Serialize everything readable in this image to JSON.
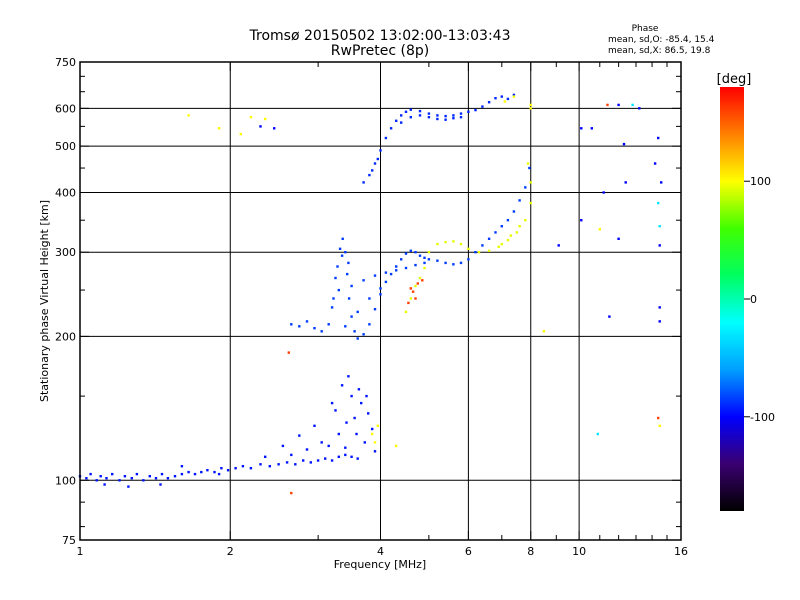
{
  "chart_data": {
    "type": "scatter",
    "title": "Tromsø 20150502 13:02:00-13:03:43",
    "subtitle": "RwPretec (8p)",
    "xlabel": "Frequency [MHz]",
    "ylabel": "Stationary phase Virtual Height [km]",
    "x_scale": "log",
    "y_scale": "log",
    "xlim": [
      1,
      16
    ],
    "ylim": [
      75,
      750
    ],
    "x_ticks": [
      {
        "v": 1,
        "label": "1"
      },
      {
        "v": 2,
        "label": "2"
      },
      {
        "v": 4,
        "label": "4"
      },
      {
        "v": 6,
        "label": "6"
      },
      {
        "v": 8,
        "label": "8"
      },
      {
        "v": 10,
        "label": "10"
      },
      {
        "v": 16,
        "label": "16"
      }
    ],
    "x_minor_ticks": [
      3,
      5,
      7,
      9,
      11,
      12,
      13,
      14,
      15
    ],
    "x_gridlines": [
      2,
      4,
      6,
      8,
      10
    ],
    "y_ticks": [
      {
        "v": 75,
        "label": "75"
      },
      {
        "v": 100,
        "label": "100"
      },
      {
        "v": 200,
        "label": "200"
      },
      {
        "v": 300,
        "label": "300"
      },
      {
        "v": 400,
        "label": "400"
      },
      {
        "v": 500,
        "label": "500"
      },
      {
        "v": 600,
        "label": "600"
      },
      {
        "v": 750,
        "label": "750"
      }
    ],
    "y_minor_ticks": [
      80,
      90,
      150,
      250,
      350,
      450,
      550,
      650,
      700
    ],
    "y_gridlines": [
      100,
      200,
      300,
      400,
      500,
      600
    ],
    "grid": true,
    "phase_stats": {
      "heading": "Phase",
      "line_o": "mean, sd,O: -85.4, 15.4",
      "line_x": "mean, sd,X:  86.5, 19.8"
    },
    "colorbar": {
      "label": "[deg]",
      "min": -180,
      "max": 180,
      "ticks": [
        {
          "v": 100,
          "label": "100"
        },
        {
          "v": 0,
          "label": "0"
        },
        {
          "v": -100,
          "label": "-100"
        }
      ],
      "colors": [
        "#000000",
        "#3a0070",
        "#0000ff",
        "#00a0ff",
        "#00ffff",
        "#00ff60",
        "#40ff00",
        "#ffff00",
        "#ff8000",
        "#ff0000"
      ]
    },
    "series": [
      {
        "color_phase": -95,
        "note": "low E-region trace ~100-110 km",
        "points": [
          [
            1.0,
            102
          ],
          [
            1.03,
            101
          ],
          [
            1.05,
            103
          ],
          [
            1.08,
            100
          ],
          [
            1.1,
            102
          ],
          [
            1.13,
            101
          ],
          [
            1.16,
            103
          ],
          [
            1.2,
            100
          ],
          [
            1.23,
            102
          ],
          [
            1.27,
            101
          ],
          [
            1.3,
            103
          ],
          [
            1.34,
            100
          ],
          [
            1.38,
            102
          ],
          [
            1.42,
            101
          ],
          [
            1.46,
            103
          ],
          [
            1.5,
            101
          ],
          [
            1.55,
            102
          ],
          [
            1.6,
            103
          ],
          [
            1.65,
            104
          ],
          [
            1.7,
            103
          ],
          [
            1.75,
            104
          ],
          [
            1.8,
            105
          ],
          [
            1.86,
            104
          ],
          [
            1.92,
            106
          ],
          [
            1.98,
            105
          ],
          [
            2.05,
            106
          ],
          [
            2.12,
            107
          ],
          [
            2.2,
            106
          ],
          [
            2.3,
            108
          ],
          [
            2.4,
            107
          ],
          [
            2.5,
            108
          ],
          [
            2.6,
            109
          ],
          [
            2.7,
            108
          ],
          [
            2.8,
            110
          ],
          [
            2.9,
            109
          ],
          [
            3.0,
            110
          ],
          [
            3.1,
            111
          ],
          [
            3.2,
            110
          ],
          [
            3.3,
            112
          ],
          [
            3.4,
            113
          ],
          [
            3.5,
            112
          ],
          [
            3.6,
            111
          ],
          [
            1.6,
            107
          ],
          [
            1.9,
            103
          ],
          [
            2.35,
            112
          ],
          [
            2.55,
            118
          ],
          [
            2.75,
            124
          ],
          [
            2.95,
            130
          ],
          [
            3.15,
            118
          ],
          [
            3.25,
            140
          ],
          [
            3.35,
            158
          ],
          [
            3.42,
            132
          ],
          [
            3.5,
            150
          ],
          [
            3.58,
            125
          ],
          [
            3.66,
            145
          ],
          [
            3.72,
            120
          ],
          [
            3.78,
            138
          ],
          [
            3.85,
            128
          ],
          [
            3.3,
            125
          ],
          [
            3.4,
            117
          ],
          [
            3.55,
            135
          ],
          [
            3.62,
            155
          ],
          [
            3.45,
            165
          ],
          [
            3.75,
            150
          ],
          [
            3.9,
            115
          ],
          [
            3.2,
            145
          ],
          [
            3.05,
            120
          ],
          [
            2.85,
            116
          ],
          [
            2.65,
            113
          ],
          [
            1.25,
            97
          ],
          [
            1.45,
            98
          ],
          [
            1.12,
            98
          ]
        ]
      },
      {
        "color_phase": -85,
        "note": "F1 trace rising 200-300 km",
        "points": [
          [
            2.65,
            212
          ],
          [
            2.75,
            210
          ],
          [
            2.85,
            215
          ],
          [
            2.95,
            208
          ],
          [
            3.05,
            205
          ],
          [
            3.15,
            212
          ],
          [
            3.22,
            240
          ],
          [
            3.28,
            280
          ],
          [
            3.32,
            305
          ],
          [
            3.36,
            320
          ],
          [
            3.4,
            300
          ],
          [
            3.43,
            270
          ],
          [
            3.46,
            240
          ],
          [
            3.5,
            220
          ],
          [
            3.55,
            205
          ],
          [
            3.6,
            198
          ],
          [
            3.7,
            202
          ],
          [
            3.8,
            212
          ],
          [
            3.9,
            228
          ],
          [
            4.0,
            245
          ],
          [
            4.1,
            260
          ],
          [
            4.2,
            270
          ],
          [
            4.3,
            280
          ],
          [
            4.4,
            290
          ],
          [
            4.5,
            298
          ],
          [
            4.6,
            302
          ],
          [
            4.7,
            300
          ],
          [
            4.8,
            295
          ],
          [
            4.9,
            292
          ],
          [
            5.0,
            290
          ],
          [
            5.2,
            288
          ],
          [
            5.4,
            285
          ],
          [
            5.6,
            283
          ],
          [
            5.8,
            285
          ],
          [
            6.0,
            290
          ],
          [
            6.2,
            300
          ],
          [
            6.4,
            310
          ],
          [
            6.6,
            320
          ],
          [
            6.8,
            330
          ],
          [
            7.0,
            340
          ],
          [
            7.2,
            350
          ],
          [
            7.4,
            365
          ],
          [
            7.6,
            385
          ],
          [
            7.8,
            410
          ],
          [
            7.95,
            450
          ],
          [
            3.3,
            250
          ],
          [
            3.5,
            255
          ],
          [
            3.7,
            262
          ],
          [
            3.9,
            268
          ],
          [
            4.1,
            272
          ],
          [
            4.3,
            275
          ],
          [
            4.5,
            278
          ],
          [
            4.7,
            282
          ],
          [
            4.9,
            285
          ],
          [
            3.4,
            210
          ],
          [
            3.6,
            225
          ],
          [
            3.8,
            240
          ],
          [
            4.0,
            252
          ],
          [
            3.2,
            230
          ],
          [
            3.25,
            265
          ],
          [
            3.45,
            285
          ],
          [
            3.35,
            295
          ]
        ]
      },
      {
        "color_phase": 95,
        "note": "X-mode F1/F2 trace",
        "points": [
          [
            4.5,
            225
          ],
          [
            4.6,
            240
          ],
          [
            4.7,
            255
          ],
          [
            4.8,
            265
          ],
          [
            4.9,
            278
          ],
          [
            5.0,
            300
          ],
          [
            5.2,
            312
          ],
          [
            5.4,
            315
          ],
          [
            5.6,
            316
          ],
          [
            5.8,
            312
          ],
          [
            6.0,
            305
          ],
          [
            6.3,
            300
          ],
          [
            6.6,
            302
          ],
          [
            6.9,
            308
          ],
          [
            7.2,
            318
          ],
          [
            7.5,
            330
          ],
          [
            7.8,
            350
          ],
          [
            8.0,
            380
          ],
          [
            8.0,
            420
          ],
          [
            7.9,
            460
          ],
          [
            7.6,
            340
          ],
          [
            7.3,
            325
          ],
          [
            7.0,
            312
          ]
        ]
      },
      {
        "color_phase": 160,
        "note": "orange segment",
        "points": [
          [
            4.55,
            235
          ],
          [
            4.65,
            248
          ],
          [
            4.75,
            258
          ],
          [
            4.85,
            262
          ],
          [
            4.6,
            252
          ],
          [
            4.7,
            240
          ]
        ]
      },
      {
        "color_phase": -90,
        "note": "F2 trace ~400-620 km",
        "points": [
          [
            3.7,
            420
          ],
          [
            3.8,
            435
          ],
          [
            3.9,
            460
          ],
          [
            4.0,
            490
          ],
          [
            4.1,
            520
          ],
          [
            4.2,
            545
          ],
          [
            4.3,
            565
          ],
          [
            4.4,
            580
          ],
          [
            4.5,
            590
          ],
          [
            4.6,
            596
          ],
          [
            4.8,
            592
          ],
          [
            5.0,
            585
          ],
          [
            5.2,
            580
          ],
          [
            5.4,
            578
          ],
          [
            5.6,
            580
          ],
          [
            5.8,
            585
          ],
          [
            6.0,
            590
          ],
          [
            6.2,
            595
          ],
          [
            6.4,
            605
          ],
          [
            6.6,
            618
          ],
          [
            6.8,
            630
          ],
          [
            7.0,
            635
          ],
          [
            7.2,
            628
          ],
          [
            7.4,
            640
          ],
          [
            4.4,
            560
          ],
          [
            4.6,
            575
          ],
          [
            4.8,
            580
          ],
          [
            5.0,
            575
          ],
          [
            5.2,
            570
          ],
          [
            5.4,
            568
          ],
          [
            5.6,
            572
          ],
          [
            5.8,
            575
          ],
          [
            3.85,
            445
          ],
          [
            3.95,
            470
          ]
        ]
      },
      {
        "color_phase": 100,
        "note": "scattered yellow",
        "points": [
          [
            1.65,
            580
          ],
          [
            1.9,
            545
          ],
          [
            2.1,
            530
          ],
          [
            2.2,
            575
          ],
          [
            2.35,
            570
          ],
          [
            3.85,
            125
          ],
          [
            3.95,
            130
          ],
          [
            3.9,
            120
          ],
          [
            4.3,
            118
          ],
          [
            7.1,
            620
          ],
          [
            7.4,
            635
          ],
          [
            8.0,
            610
          ],
          [
            8.0,
            600
          ],
          [
            14.5,
            130
          ],
          [
            11.0,
            335
          ],
          [
            8.5,
            205
          ]
        ]
      },
      {
        "color_phase": -100,
        "note": "scattered blue",
        "points": [
          [
            2.3,
            550
          ],
          [
            2.45,
            545
          ],
          [
            12.0,
            610
          ],
          [
            13.2,
            600
          ],
          [
            14.2,
            460
          ],
          [
            14.6,
            420
          ],
          [
            11.2,
            400
          ],
          [
            12.4,
            420
          ],
          [
            10.1,
            350
          ],
          [
            9.1,
            310
          ],
          [
            12.0,
            320
          ],
          [
            14.5,
            310
          ],
          [
            14.5,
            230
          ],
          [
            14.5,
            215
          ],
          [
            11.5,
            220
          ],
          [
            14.4,
            520
          ],
          [
            12.3,
            505
          ],
          [
            10.6,
            545
          ],
          [
            10.1,
            545
          ]
        ]
      },
      {
        "color_phase": -30,
        "note": "scattered cyan",
        "points": [
          [
            14.5,
            340
          ],
          [
            14.4,
            380
          ],
          [
            10.9,
            125
          ],
          [
            12.8,
            610
          ]
        ]
      },
      {
        "color_phase": 160,
        "note": "scattered orange",
        "points": [
          [
            2.65,
            94
          ],
          [
            2.62,
            185
          ],
          [
            11.4,
            610
          ],
          [
            14.4,
            135
          ]
        ]
      }
    ]
  }
}
